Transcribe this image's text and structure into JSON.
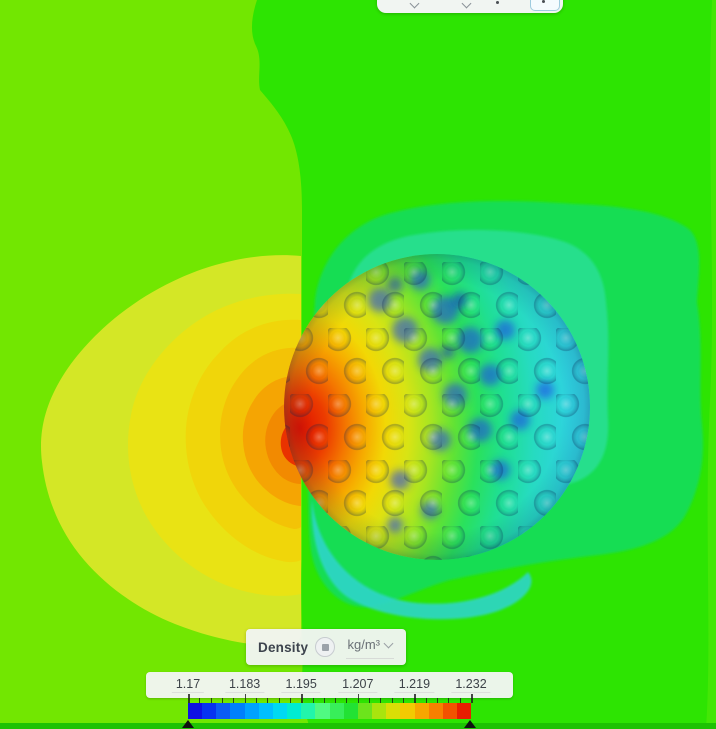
{
  "toolbar": {
    "buttons": [
      {
        "icon": "dropdown-caret-icon"
      },
      {
        "icon": "dropdown-caret-icon"
      },
      {
        "icon": "tool-icon"
      },
      {
        "icon": "tool-icon",
        "active": true
      }
    ]
  },
  "field_selector": {
    "label": "Density",
    "badge_icon": "solid-color-toggle-icon",
    "unit": "kg/m³",
    "chevron_icon": "chevron-down-icon"
  },
  "legend": {
    "tick_labels": [
      "1.17",
      "1.183",
      "1.195",
      "1.207",
      "1.219",
      "1.232"
    ],
    "minor_ticks_per_interval": 4,
    "colorbar_colors": [
      "#0f10e4",
      "#0733f1",
      "#0b5cf5",
      "#0080fb",
      "#00a2ff",
      "#00bfff",
      "#00d9f2",
      "#00ecd2",
      "#22f5ab",
      "#50fa82",
      "#38ee5a",
      "#22e234",
      "#6ce41c",
      "#a9e40e",
      "#d9de06",
      "#f2ca02",
      "#f7a600",
      "#f78000",
      "#f25200",
      "#e81e00"
    ],
    "range_min": "1.17",
    "range_max": "1.232"
  },
  "scene_colors": {
    "background_left": "#72e701",
    "background_right": "#2de402",
    "wake_green": "#13dd52",
    "wake_teal": "#26df8c",
    "bottom_strip": "#1ec203"
  },
  "chart_data": {
    "type": "heatmap",
    "title": "Density",
    "unit": "kg/m³",
    "colorbar_ticks": [
      1.17,
      1.183,
      1.195,
      1.207,
      1.219,
      1.232
    ],
    "range": [
      1.17,
      1.232
    ],
    "colormap": "rainbow",
    "legend_position": "bottom"
  }
}
